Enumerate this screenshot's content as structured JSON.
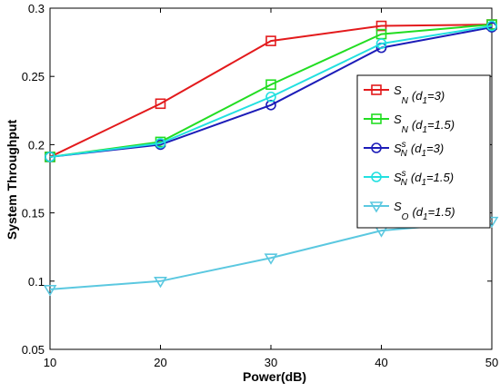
{
  "chart_data": {
    "type": "line",
    "xlabel": "Power(dB)",
    "ylabel": "System Throughput",
    "x": [
      10,
      20,
      30,
      40,
      50
    ],
    "xlim": [
      10,
      50
    ],
    "ylim": [
      0.05,
      0.3
    ],
    "xticks": [
      "10",
      "20",
      "30",
      "40",
      "50"
    ],
    "yticks": [
      "0.05",
      "0.1",
      "0.15",
      "0.2",
      "0.25",
      "0.3"
    ],
    "grid": false,
    "legend_position": "right",
    "series": [
      {
        "name": "S_N (d_1=3)",
        "base": "S",
        "sub": "N",
        "sup": "",
        "param": "(d",
        "param_sub": "1",
        "param_val": "=3)",
        "color": "#e31a1c",
        "marker": "square",
        "values": [
          0.191,
          0.23,
          0.276,
          0.287,
          0.288
        ]
      },
      {
        "name": "S_N (d_1=1.5)",
        "base": "S",
        "sub": "N",
        "sup": "",
        "param": "(d",
        "param_sub": "1",
        "param_val": "=1.5)",
        "color": "#22dd22",
        "marker": "square",
        "values": [
          0.191,
          0.202,
          0.244,
          0.281,
          0.288
        ]
      },
      {
        "name": "S^s_N (d_1=3)",
        "base": "S",
        "sub": "N",
        "sup": "s",
        "param": "(d",
        "param_sub": "1",
        "param_val": "=3)",
        "color": "#1c1cb8",
        "marker": "circle",
        "values": [
          0.191,
          0.2,
          0.229,
          0.271,
          0.286
        ]
      },
      {
        "name": "S^s_N (d_1=1.5)",
        "base": "S",
        "sub": "N",
        "sup": "s",
        "param": "(d",
        "param_sub": "1",
        "param_val": "=1.5)",
        "color": "#22e0e0",
        "marker": "circle",
        "values": [
          0.191,
          0.201,
          0.235,
          0.274,
          0.287
        ]
      },
      {
        "name": "S_O (d_1=1.5)",
        "base": "S",
        "sub": "O",
        "sup": "",
        "param": "(d",
        "param_sub": "1",
        "param_val": "=1.5)",
        "color": "#5bc8e0",
        "marker": "triangle-down",
        "values": [
          0.094,
          0.1,
          0.117,
          0.137,
          0.144
        ]
      }
    ]
  }
}
